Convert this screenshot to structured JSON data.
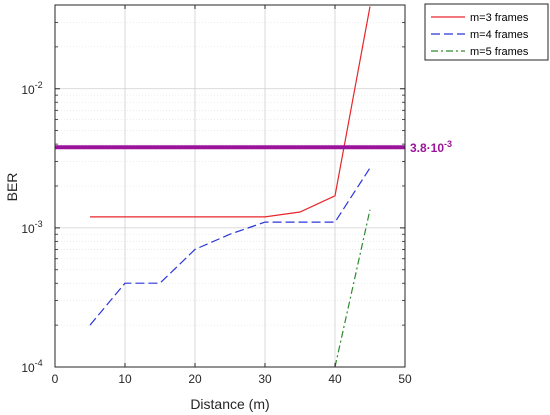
{
  "chart_data": {
    "type": "line",
    "xlabel": "Distance (m)",
    "ylabel": "BER",
    "xlim": [
      0,
      50
    ],
    "ylim": [
      0.0001,
      0.04
    ],
    "yscale": "log",
    "grid": true,
    "legend_position": "outside-top-right",
    "x_ticks": [
      0,
      10,
      20,
      30,
      40,
      50
    ],
    "x_tick_labels": [
      "0",
      "10",
      "20",
      "30",
      "40",
      "50"
    ],
    "y_ticks": [
      0.0001,
      0.001,
      0.01
    ],
    "y_tick_labels": [
      {
        "base": "10",
        "exp": "-4"
      },
      {
        "base": "10",
        "exp": "-3"
      },
      {
        "base": "10",
        "exp": "-2"
      }
    ],
    "series": [
      {
        "name": "m=3 frames",
        "color": "#e8262a",
        "dash": "solid",
        "x": [
          5,
          10,
          15,
          20,
          25,
          30,
          35,
          40,
          45
        ],
        "y": [
          0.0012,
          0.0012,
          0.0012,
          0.0012,
          0.0012,
          0.0012,
          0.0013,
          0.0017,
          0.039
        ]
      },
      {
        "name": "m=4 frames",
        "color": "#2b36d8",
        "dash": "dashed",
        "x": [
          5,
          10,
          15,
          20,
          25,
          30,
          35,
          40,
          45
        ],
        "y": [
          0.0002,
          0.0004,
          0.0004,
          0.0007,
          0.0009,
          0.0011,
          0.0011,
          0.0011,
          0.0027
        ]
      },
      {
        "name": "m=5 frames",
        "color": "#2e8a2e",
        "dash": "dashdot",
        "x": [
          40,
          45
        ],
        "y": [
          0.0001,
          0.00135
        ]
      }
    ],
    "reference_line": {
      "y": 0.0038,
      "label_base": "3.8·10",
      "label_exp": "-3",
      "color": "#9b139b"
    }
  }
}
